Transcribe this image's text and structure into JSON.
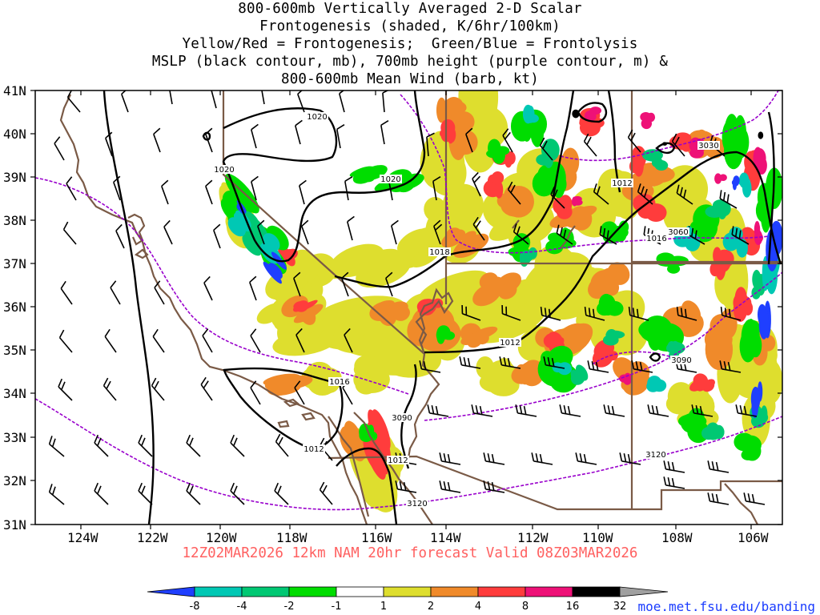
{
  "title": {
    "lines": [
      "800-600mb Vertically Averaged 2-D Scalar",
      "Frontogenesis (shaded, K/6hr/100km)",
      "Yellow/Red = Frontogenesis;  Green/Blue = Frontolysis",
      "MSLP (black contour, mb), 700mb height (purple contour, m) &",
      "800-600mb Mean Wind (barb, kt)"
    ]
  },
  "map": {
    "lat_labels": [
      "41N",
      "40N",
      "39N",
      "38N",
      "37N",
      "36N",
      "35N",
      "34N",
      "33N",
      "32N",
      "31N"
    ],
    "lon_labels": [
      "124W",
      "122W",
      "120W",
      "118W",
      "116W",
      "114W",
      "112W",
      "110W",
      "108W",
      "106W"
    ],
    "mslp_labels": [
      "1020",
      "1020",
      "1020",
      "1012",
      "1018",
      "1012",
      "1016",
      "1012",
      "1012",
      "1016"
    ],
    "height_labels": [
      "3030",
      "3060",
      "3090",
      "3090",
      "3120",
      "3120"
    ],
    "colors": {
      "mslp_contour": "#000000",
      "height_contour": "#9900cc",
      "borders": "#7a5a46",
      "wind_barb": "#000000"
    },
    "shading_colors": {
      "blue": "#1f3fff",
      "cyan": "#00c8b4",
      "green_mid": "#00c873",
      "green": "#00dd00",
      "yellow": "#dede2e",
      "orange": "#f08a2a",
      "red": "#ff3c3c",
      "magenta": "#ee1177",
      "black": "#000000"
    }
  },
  "valid_line": "12Z02MAR2026 12km NAM 20hr forecast Valid 08Z03MAR2026",
  "colorbar": {
    "labels": [
      "-8",
      "-4",
      "-2",
      "-1",
      "1",
      "2",
      "4",
      "8",
      "16",
      "32"
    ],
    "colors": [
      "#1f3fff",
      "#00c8b4",
      "#00c873",
      "#00dd00",
      "#ffffff",
      "#dede2e",
      "#f08a2a",
      "#ff3c3c",
      "#ee1177",
      "#000000",
      "#a0a0a0"
    ]
  },
  "credit": "moe.met.fsu.edu/banding"
}
